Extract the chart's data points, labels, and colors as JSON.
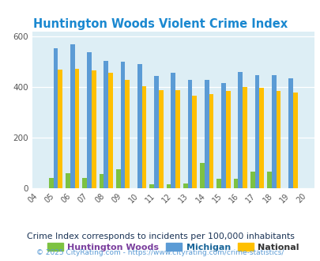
{
  "title": "Huntington Woods Violent Crime Index",
  "years": [
    2004,
    2005,
    2006,
    2007,
    2008,
    2009,
    2010,
    2011,
    2012,
    2013,
    2014,
    2015,
    2016,
    2017,
    2018,
    2019,
    2020
  ],
  "bar_years": [
    2005,
    2006,
    2007,
    2008,
    2009,
    2010,
    2011,
    2012,
    2013,
    2014,
    2015,
    2016,
    2017,
    2018,
    2019
  ],
  "huntington_woods": [
    40,
    57,
    40,
    55,
    75,
    0,
    15,
    15,
    18,
    100,
    35,
    35,
    65,
    63,
    0
  ],
  "michigan": [
    553,
    568,
    537,
    502,
    500,
    490,
    443,
    455,
    428,
    428,
    415,
    460,
    448,
    445,
    435
  ],
  "national": [
    470,
    473,
    465,
    455,
    428,
    403,
    387,
    387,
    365,
    372,
    383,
    400,
    395,
    383,
    379
  ],
  "color_hw": "#7dc242",
  "color_mi": "#5b9bd5",
  "color_na": "#ffc000",
  "bg_color": "#ddeef5",
  "ylim": [
    0,
    620
  ],
  "yticks": [
    0,
    200,
    400,
    600
  ],
  "legend_labels": [
    "Huntington Woods",
    "Michigan",
    "National"
  ],
  "legend_text_colors": [
    "#7b3f9e",
    "#1a6699",
    "#333333"
  ],
  "footnote1": "Crime Index corresponds to incidents per 100,000 inhabitants",
  "footnote2": "© 2025 CityRating.com - https://www.cityrating.com/crime-statistics/",
  "title_color": "#1a88d0",
  "footnote1_color": "#1a3355",
  "footnote2_color": "#5b9bd5",
  "bar_width": 0.27
}
